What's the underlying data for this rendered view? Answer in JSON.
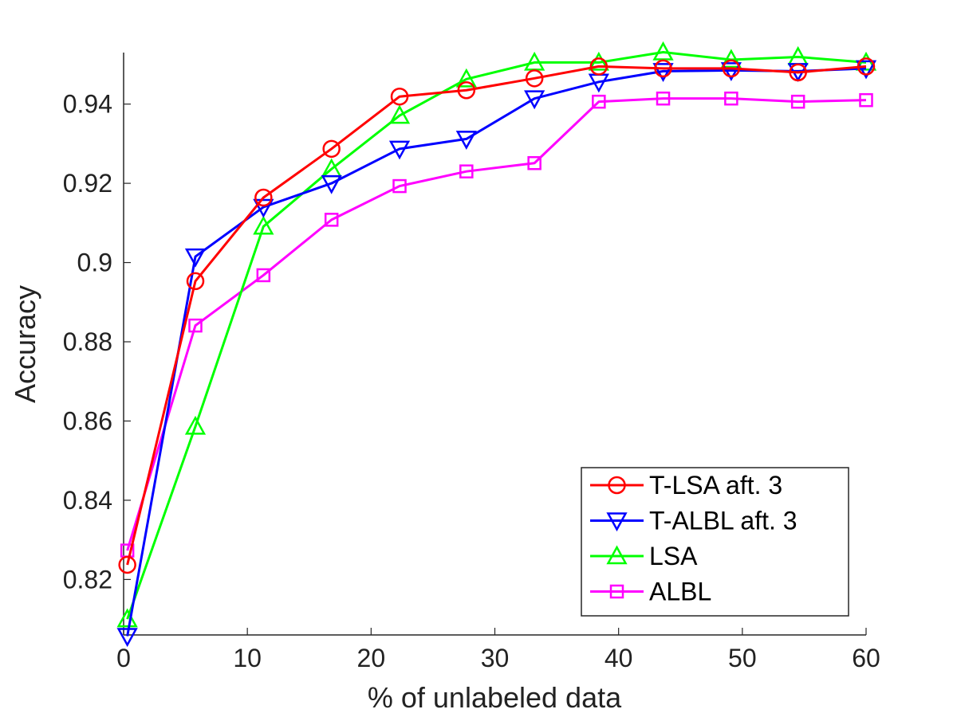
{
  "chart_data": {
    "type": "line",
    "title": "",
    "xlabel": "% of unlabeled data",
    "ylabel": "Accuracy",
    "xlim": [
      0,
      60
    ],
    "ylim": [
      0.806,
      0.953
    ],
    "xticks": [
      0,
      10,
      20,
      30,
      40,
      50,
      60
    ],
    "xtick_labels": [
      "0",
      "10",
      "20",
      "30",
      "40",
      "50",
      "60"
    ],
    "yticks": [
      0.82,
      0.84,
      0.86,
      0.88,
      0.9,
      0.92,
      0.94
    ],
    "ytick_labels": [
      "0.82",
      "0.84",
      "0.86",
      "0.88",
      "0.9",
      "0.92",
      "0.94"
    ],
    "grid": false,
    "legend_position": "bottom-right",
    "x": [
      0.3,
      5.8,
      11.3,
      16.8,
      22.3,
      27.7,
      33.2,
      38.4,
      43.6,
      49.1,
      54.5,
      60.0
    ],
    "series": [
      {
        "name": "T-LSA aft. 3",
        "color": "#ff0000",
        "marker": "circle",
        "values": [
          0.8237,
          0.8953,
          0.9164,
          0.9287,
          0.9419,
          0.9435,
          0.9465,
          0.9495,
          0.949,
          0.949,
          0.948,
          0.9495
        ]
      },
      {
        "name": "T-ALBL aft. 3",
        "color": "#0000ff",
        "marker": "triangle-down",
        "values": [
          0.8057,
          0.9015,
          0.914,
          0.92,
          0.9287,
          0.9312,
          0.9414,
          0.9456,
          0.9483,
          0.9485,
          0.9483,
          0.949
        ]
      },
      {
        "name": "LSA",
        "color": "#00ff00",
        "marker": "triangle-up",
        "values": [
          0.81,
          0.8586,
          0.9091,
          0.9236,
          0.9371,
          0.9463,
          0.9505,
          0.9505,
          0.9531,
          0.9512,
          0.9519,
          0.9505
        ]
      },
      {
        "name": "ALBL",
        "color": "#ff00ff",
        "marker": "square",
        "values": [
          0.8273,
          0.8841,
          0.8968,
          0.9108,
          0.9193,
          0.923,
          0.9251,
          0.9406,
          0.9414,
          0.9414,
          0.9406,
          0.941
        ]
      }
    ]
  }
}
